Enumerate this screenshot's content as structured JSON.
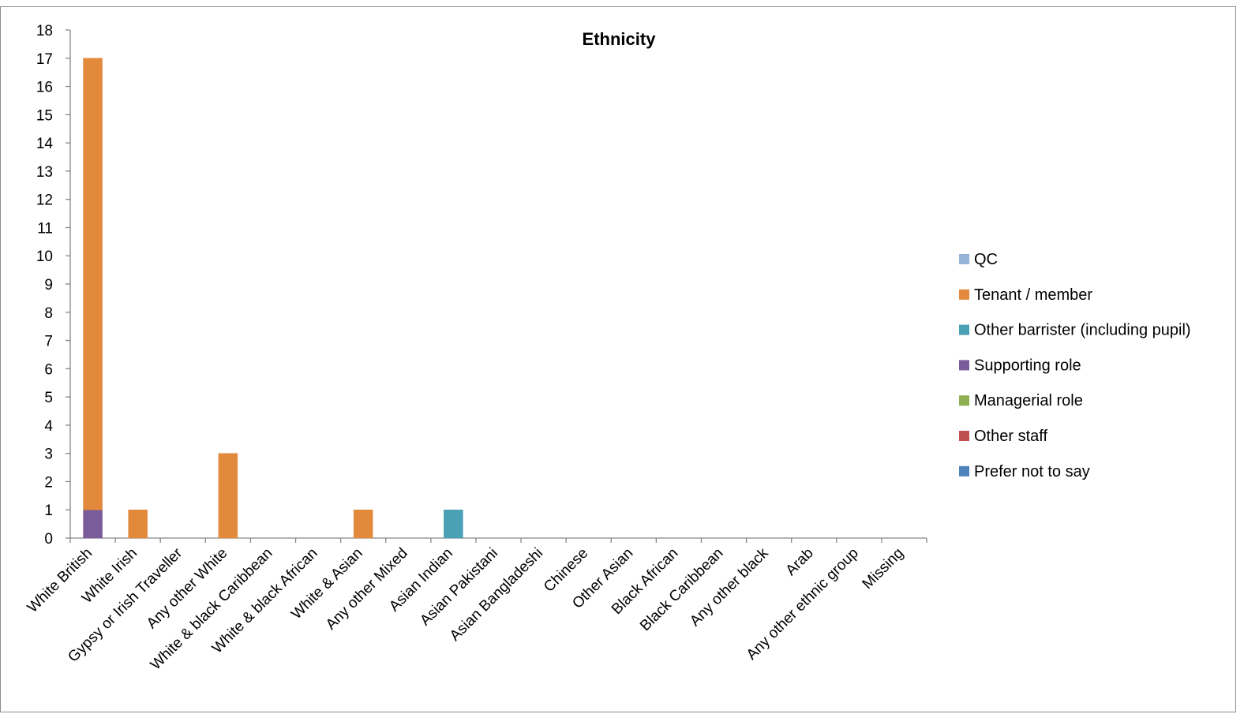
{
  "chart_data": {
    "type": "bar",
    "stacked": true,
    "title": "Ethnicity",
    "xlabel": "",
    "ylabel": "",
    "ylim": [
      0,
      18
    ],
    "yticks": [
      "0",
      "1",
      "2",
      "3",
      "4",
      "5",
      "6",
      "7",
      "8",
      "9",
      "10",
      "11",
      "12",
      "13",
      "14",
      "15",
      "16",
      "17",
      "18"
    ],
    "grid": false,
    "legend_position": "right",
    "categories": [
      "White British",
      "White Irish",
      "Gypsy or Irish Traveller",
      "Any other White",
      "White & black Caribbean",
      "White & black African",
      "White & Asian",
      "Any other Mixed",
      "Asian Indian",
      "Asian Pakistani",
      "Asian Bangladeshi",
      "Chinese",
      "Other Asian",
      "Black African",
      "Black Caribbean",
      "Any other black",
      "Arab",
      "Any other ethnic group",
      "Missing"
    ],
    "series": [
      {
        "name": "QC",
        "color": "#95b3d7",
        "values": [
          0,
          0,
          0,
          0,
          0,
          0,
          0,
          0,
          0,
          0,
          0,
          0,
          0,
          0,
          0,
          0,
          0,
          0,
          0
        ]
      },
      {
        "name": "Tenant / member",
        "color": "#e2893c",
        "values": [
          16,
          1,
          0,
          3,
          0,
          0,
          1,
          0,
          0,
          0,
          0,
          0,
          0,
          0,
          0,
          0,
          0,
          0,
          0
        ]
      },
      {
        "name": "Other barrister (including pupil)",
        "color": "#4aa0b5",
        "values": [
          0,
          0,
          0,
          0,
          0,
          0,
          0,
          0,
          1,
          0,
          0,
          0,
          0,
          0,
          0,
          0,
          0,
          0,
          0
        ]
      },
      {
        "name": "Supporting role",
        "color": "#7a5c9a",
        "values": [
          1,
          0,
          0,
          0,
          0,
          0,
          0,
          0,
          0,
          0,
          0,
          0,
          0,
          0,
          0,
          0,
          0,
          0,
          0
        ]
      },
      {
        "name": "Managerial role",
        "color": "#8eb051",
        "values": [
          0,
          0,
          0,
          0,
          0,
          0,
          0,
          0,
          0,
          0,
          0,
          0,
          0,
          0,
          0,
          0,
          0,
          0,
          0
        ]
      },
      {
        "name": "Other staff",
        "color": "#c0504d",
        "values": [
          0,
          0,
          0,
          0,
          0,
          0,
          0,
          0,
          0,
          0,
          0,
          0,
          0,
          0,
          0,
          0,
          0,
          0,
          0
        ]
      },
      {
        "name": "Prefer not to say",
        "color": "#4f81bd",
        "values": [
          0,
          0,
          0,
          0,
          0,
          0,
          0,
          0,
          0,
          0,
          0,
          0,
          0,
          0,
          0,
          0,
          0,
          0,
          0
        ]
      }
    ]
  }
}
